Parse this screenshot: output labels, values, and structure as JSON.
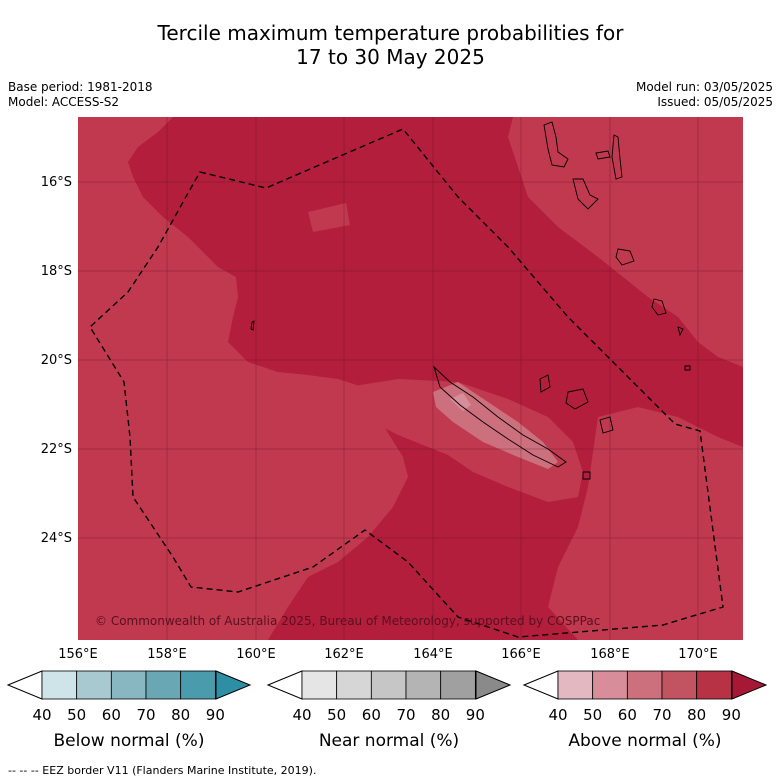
{
  "title_line1": "Tercile maximum temperature probabilities for",
  "title_line2": "17 to 30 May 2025",
  "base_period": "Base period: 1981-2018",
  "model": "Model: ACCESS-S2",
  "model_run": "Model run: 03/05/2025",
  "issued": "Issued: 05/05/2025",
  "copyright": "© Commonwealth of Australia 2025, Bureau of Meteorology, supported by COSPPac",
  "lat_labels": [
    "16°S",
    "18°S",
    "20°S",
    "22°S",
    "24°S"
  ],
  "lon_labels": [
    "156°E",
    "158°E",
    "160°E",
    "162°E",
    "164°E",
    "166°E",
    "168°E",
    "170°E"
  ],
  "colorbars": [
    {
      "title": "Below normal (%)",
      "ticks": [
        "40",
        "50",
        "60",
        "70",
        "80",
        "90"
      ],
      "colors": [
        "#cfe4e9",
        "#a8c9d0",
        "#88b6c1",
        "#6aa7b5",
        "#4a9cad",
        "#2e8fa4"
      ]
    },
    {
      "title": "Near normal (%)",
      "ticks": [
        "40",
        "50",
        "60",
        "70",
        "80",
        "90"
      ],
      "colors": [
        "#e5e5e5",
        "#d6d6d6",
        "#c6c6c6",
        "#b4b4b4",
        "#a0a0a0",
        "#8a8a8a"
      ]
    },
    {
      "title": "Above normal (%)",
      "ticks": [
        "40",
        "50",
        "60",
        "70",
        "80",
        "90"
      ],
      "colors": [
        "#e3b8c0",
        "#d78e9a",
        "#cc707d",
        "#c25462",
        "#b83245",
        "#a61836"
      ]
    }
  ],
  "footer": "--  --  -- EEZ border V11 (Flanders Marine Institute, 2019).",
  "map_colors": {
    "above_60_70": "#cc707d",
    "above_70_80": "#c0394f",
    "above_80_90": "#b21e3c",
    "land_outline": "#000000",
    "eez_border": "#000000"
  }
}
